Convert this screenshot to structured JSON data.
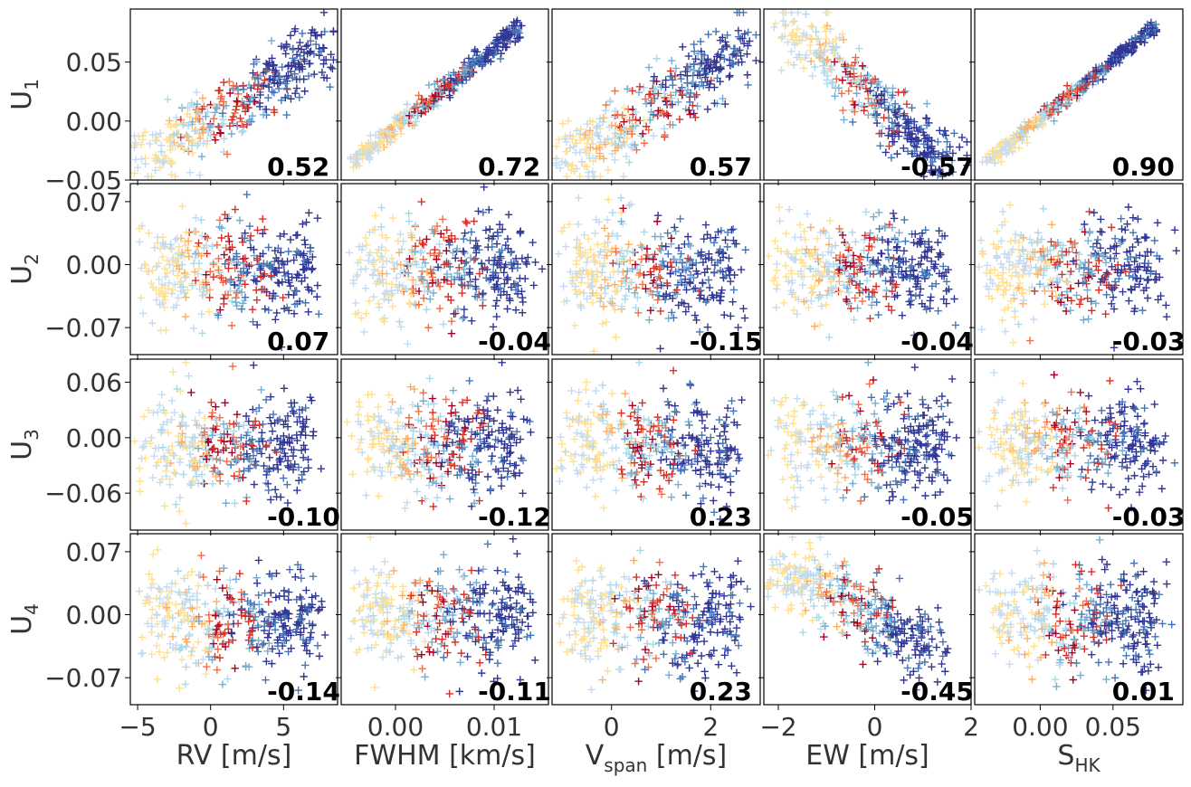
{
  "chart_data": {
    "type": "scatter",
    "layout": "grid 4 rows x 5 columns",
    "marker": "plus",
    "colormap": [
      "#fee090",
      "#fdae61",
      "#f46d43",
      "#d73027",
      "#a50026",
      "#c6dbef",
      "#abd9e9",
      "#74add1",
      "#4575b4",
      "#313695"
    ],
    "rows": [
      {
        "label": "U",
        "sub": "1",
        "ylim": [
          -0.05,
          0.095
        ],
        "yticks": [
          "0.05",
          "0.00",
          "−0.05"
        ],
        "ytick_values": [
          0.05,
          0.0,
          -0.05
        ]
      },
      {
        "label": "U",
        "sub": "2",
        "ylim": [
          -0.1,
          0.09
        ],
        "yticks": [
          "0.07",
          "0.00",
          "−0.07"
        ],
        "ytick_values": [
          0.07,
          0.0,
          -0.07
        ]
      },
      {
        "label": "U",
        "sub": "3",
        "ylim": [
          -0.1,
          0.085
        ],
        "yticks": [
          "0.06",
          "0.00",
          "−0.06"
        ],
        "ytick_values": [
          0.06,
          0.0,
          -0.06
        ]
      },
      {
        "label": "U",
        "sub": "4",
        "ylim": [
          -0.1,
          0.09
        ],
        "yticks": [
          "0.07",
          "0.00",
          "−0.07"
        ],
        "ytick_values": [
          0.07,
          0.0,
          -0.07
        ]
      }
    ],
    "columns": [
      {
        "label": "RV [m/s]",
        "sub": "",
        "label_suffix": "",
        "xlim": [
          -5.5,
          8.7
        ],
        "xticks": [
          "−5",
          "0",
          "5"
        ],
        "xtick_values": [
          -5,
          0,
          5
        ]
      },
      {
        "label": "FWHM [km/s]",
        "sub": "",
        "label_suffix": "",
        "xlim": [
          -0.0055,
          0.0155
        ],
        "xticks": [
          "0.00",
          "0.01"
        ],
        "xtick_values": [
          0.0,
          0.01
        ]
      },
      {
        "label": "V",
        "sub": "span",
        "label_suffix": " [m/s]",
        "xlim": [
          -1.2,
          3.0
        ],
        "xticks": [
          "0",
          "2"
        ],
        "xtick_values": [
          0,
          2
        ]
      },
      {
        "label": "EW [m/s]",
        "sub": "",
        "label_suffix": "",
        "xlim": [
          -2.3,
          2.0
        ],
        "xticks": [
          "−2",
          "0",
          "2"
        ],
        "xtick_values": [
          -2,
          0,
          2
        ]
      },
      {
        "label": "S",
        "sub": "HK",
        "label_suffix": "",
        "xlim": [
          -0.045,
          0.098
        ],
        "xticks": [
          "0.00",
          "0.05"
        ],
        "xtick_values": [
          0.0,
          0.05
        ]
      }
    ],
    "correlations": [
      [
        "0.52",
        "0.72",
        "0.57",
        "-0.57",
        "0.90"
      ],
      [
        "0.07",
        "-0.04",
        "-0.15",
        "-0.04",
        "-0.03"
      ],
      [
        "-0.10",
        "-0.12",
        "0.23",
        "-0.05",
        "-0.03"
      ],
      [
        "-0.14",
        "-0.11",
        "0.23",
        "-0.45",
        "0.01"
      ]
    ]
  }
}
